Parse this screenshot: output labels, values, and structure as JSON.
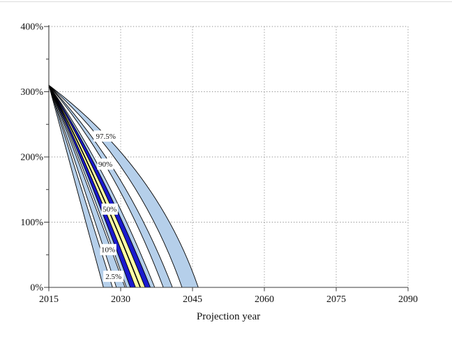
{
  "window": {
    "background": "#ffffff",
    "top_border_color": "#dcdcdc"
  },
  "chart_data": {
    "type": "area",
    "subtype": "percentile-fan-projection",
    "title": "",
    "xlabel": "Projection year",
    "ylabel": "",
    "grid": {
      "style": "dotted",
      "color": "#8f8f8f"
    },
    "x_axis": {
      "min": 2015,
      "max": 2090,
      "tick_values": [
        2015,
        2030,
        2045,
        2060,
        2075,
        2090
      ],
      "tick_labels": [
        "2015",
        "2030",
        "2045",
        "2060",
        "2075",
        "2090"
      ]
    },
    "y_axis": {
      "min": 0,
      "max": 400,
      "unit": "%",
      "tick_values": [
        0,
        100,
        200,
        300,
        400
      ],
      "tick_labels": [
        "0%",
        "100%",
        "200%",
        "300%",
        "400%"
      ],
      "minor_tick_values": [
        50,
        150,
        250,
        350
      ]
    },
    "start_point": {
      "year": 2015,
      "value_pct": 310
    },
    "control_height_frac": 0.4,
    "colors": {
      "light_blue": "#b5cfea",
      "dark_blue": "#1a1ace",
      "yellow": "#ffffa6",
      "edge": "#000000",
      "axis": "#3c3c3c",
      "text": "#111111"
    },
    "bands": [
      {
        "name": "p2half",
        "fill": "light_blue",
        "left": {
          "zero_year": 2026.4,
          "bend": 0.4
        },
        "right": {
          "zero_year": 2028.3,
          "bend": 0.4
        }
      },
      {
        "name": "p10",
        "fill": "light_blue",
        "left": {
          "zero_year": 2029.1,
          "bend": 0.42
        },
        "right": {
          "zero_year": 2030.9,
          "bend": 0.42
        }
      },
      {
        "name": "p50-edge-left",
        "fill": "light_blue",
        "left": {
          "zero_year": 2031.2,
          "bend": 0.45
        },
        "right": {
          "zero_year": 2032.0,
          "bend": 0.46
        }
      },
      {
        "name": "p50-band-left",
        "fill": "dark_blue",
        "left": {
          "zero_year": 2032.0,
          "bend": 0.46
        },
        "right": {
          "zero_year": 2033.1,
          "bend": 0.47
        }
      },
      {
        "name": "p50-core",
        "fill": "yellow",
        "left": {
          "zero_year": 2033.1,
          "bend": 0.47
        },
        "right": {
          "zero_year": 2035.1,
          "bend": 0.5
        }
      },
      {
        "name": "p50-band-right",
        "fill": "dark_blue",
        "left": {
          "zero_year": 2035.1,
          "bend": 0.5
        },
        "right": {
          "zero_year": 2036.2,
          "bend": 0.52
        }
      },
      {
        "name": "p50-edge-right",
        "fill": "light_blue",
        "left": {
          "zero_year": 2036.2,
          "bend": 0.52
        },
        "right": {
          "zero_year": 2037.1,
          "bend": 0.54
        }
      },
      {
        "name": "p90",
        "fill": "light_blue",
        "left": {
          "zero_year": 2038.9,
          "bend": 0.6
        },
        "right": {
          "zero_year": 2040.8,
          "bend": 0.62
        }
      },
      {
        "name": "p97half",
        "fill": "light_blue",
        "left": {
          "zero_year": 2042.8,
          "bend": 0.68
        },
        "right": {
          "zero_year": 2046.2,
          "bend": 0.72
        }
      }
    ],
    "median_line": {
      "zero_year": 2034.1,
      "bend": 0.48
    },
    "percentile_labels": [
      {
        "text": "97.5%",
        "year": 2026.9,
        "value_pct": 232
      },
      {
        "text": "90%",
        "year": 2026.8,
        "value_pct": 189
      },
      {
        "text": "50%",
        "year": 2027.7,
        "value_pct": 120
      },
      {
        "text": "10%",
        "year": 2027.4,
        "value_pct": 58
      },
      {
        "text": "2.5%",
        "year": 2028.5,
        "value_pct": 17
      }
    ]
  }
}
